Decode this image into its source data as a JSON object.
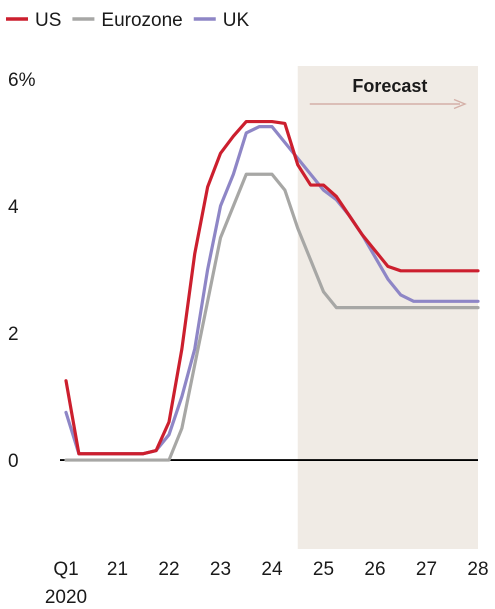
{
  "chart_data": {
    "type": "line",
    "title": "",
    "xlabel": "",
    "ylabel": "",
    "y_unit": "%",
    "ylim": [
      -1.4,
      6.0
    ],
    "xlim": [
      2020.0,
      2028.0
    ],
    "y_ticks": [
      {
        "value": 6,
        "label": "6%"
      },
      {
        "value": 4,
        "label": "4"
      },
      {
        "value": 2,
        "label": "2"
      },
      {
        "value": 0,
        "label": "0"
      }
    ],
    "x_ticks": [
      {
        "value": 2020,
        "label": "Q1",
        "sublabel": "2020"
      },
      {
        "value": 2021,
        "label": "21"
      },
      {
        "value": 2022,
        "label": "22"
      },
      {
        "value": 2023,
        "label": "23"
      },
      {
        "value": 2024,
        "label": "24"
      },
      {
        "value": 2025,
        "label": "25"
      },
      {
        "value": 2026,
        "label": "26"
      },
      {
        "value": 2027,
        "label": "27"
      },
      {
        "value": 2028,
        "label": "28"
      }
    ],
    "forecast": {
      "label": "Forecast",
      "start": 2024.5,
      "end": 2028.0,
      "shade_color": "#f0ebe5",
      "arrow_color": "#d4b0a8"
    },
    "legend_position": "top-left",
    "series": [
      {
        "name": "US",
        "color": "#cc1f2e",
        "points": [
          [
            2020.0,
            1.25
          ],
          [
            2020.25,
            0.1
          ],
          [
            2020.5,
            0.1
          ],
          [
            2020.75,
            0.1
          ],
          [
            2021.0,
            0.1
          ],
          [
            2021.25,
            0.1
          ],
          [
            2021.5,
            0.1
          ],
          [
            2021.75,
            0.15
          ],
          [
            2022.0,
            0.6
          ],
          [
            2022.25,
            1.75
          ],
          [
            2022.5,
            3.25
          ],
          [
            2022.75,
            4.3
          ],
          [
            2023.0,
            4.83
          ],
          [
            2023.25,
            5.1
          ],
          [
            2023.5,
            5.33
          ],
          [
            2023.75,
            5.33
          ],
          [
            2024.0,
            5.33
          ],
          [
            2024.25,
            5.3
          ],
          [
            2024.5,
            4.65
          ],
          [
            2024.75,
            4.33
          ],
          [
            2025.0,
            4.33
          ],
          [
            2025.25,
            4.15
          ],
          [
            2025.5,
            3.85
          ],
          [
            2025.75,
            3.55
          ],
          [
            2026.0,
            3.3
          ],
          [
            2026.25,
            3.05
          ],
          [
            2026.5,
            2.98
          ],
          [
            2026.75,
            2.98
          ],
          [
            2027.0,
            2.98
          ],
          [
            2027.5,
            2.98
          ],
          [
            2028.0,
            2.98
          ]
        ]
      },
      {
        "name": "Eurozone",
        "color": "#a7a7a5",
        "points": [
          [
            2020.0,
            0.0
          ],
          [
            2020.5,
            0.0
          ],
          [
            2021.0,
            0.0
          ],
          [
            2021.5,
            0.0
          ],
          [
            2022.0,
            0.0
          ],
          [
            2022.25,
            0.5
          ],
          [
            2022.5,
            1.5
          ],
          [
            2022.75,
            2.5
          ],
          [
            2023.0,
            3.5
          ],
          [
            2023.25,
            4.0
          ],
          [
            2023.5,
            4.5
          ],
          [
            2023.75,
            4.5
          ],
          [
            2024.0,
            4.5
          ],
          [
            2024.25,
            4.25
          ],
          [
            2024.5,
            3.65
          ],
          [
            2024.75,
            3.15
          ],
          [
            2025.0,
            2.65
          ],
          [
            2025.25,
            2.4
          ],
          [
            2025.5,
            2.4
          ],
          [
            2026.0,
            2.4
          ],
          [
            2026.5,
            2.4
          ],
          [
            2027.0,
            2.4
          ],
          [
            2027.5,
            2.4
          ],
          [
            2028.0,
            2.4
          ]
        ]
      },
      {
        "name": "UK",
        "color": "#8e86c6",
        "points": [
          [
            2020.0,
            0.75
          ],
          [
            2020.25,
            0.1
          ],
          [
            2020.5,
            0.1
          ],
          [
            2020.75,
            0.1
          ],
          [
            2021.0,
            0.1
          ],
          [
            2021.25,
            0.1
          ],
          [
            2021.5,
            0.1
          ],
          [
            2021.75,
            0.15
          ],
          [
            2022.0,
            0.4
          ],
          [
            2022.25,
            1.0
          ],
          [
            2022.5,
            1.75
          ],
          [
            2022.75,
            3.0
          ],
          [
            2023.0,
            4.0
          ],
          [
            2023.25,
            4.5
          ],
          [
            2023.5,
            5.15
          ],
          [
            2023.75,
            5.25
          ],
          [
            2024.0,
            5.25
          ],
          [
            2024.25,
            5.0
          ],
          [
            2024.5,
            4.75
          ],
          [
            2024.75,
            4.5
          ],
          [
            2025.0,
            4.25
          ],
          [
            2025.25,
            4.1
          ],
          [
            2025.5,
            3.85
          ],
          [
            2025.75,
            3.55
          ],
          [
            2026.0,
            3.2
          ],
          [
            2026.25,
            2.85
          ],
          [
            2026.5,
            2.6
          ],
          [
            2026.75,
            2.5
          ],
          [
            2027.0,
            2.5
          ],
          [
            2027.5,
            2.5
          ],
          [
            2028.0,
            2.5
          ]
        ]
      }
    ]
  },
  "colors": {
    "text": "#1a1a1a",
    "zero_line": "#000000",
    "background": "#ffffff"
  }
}
